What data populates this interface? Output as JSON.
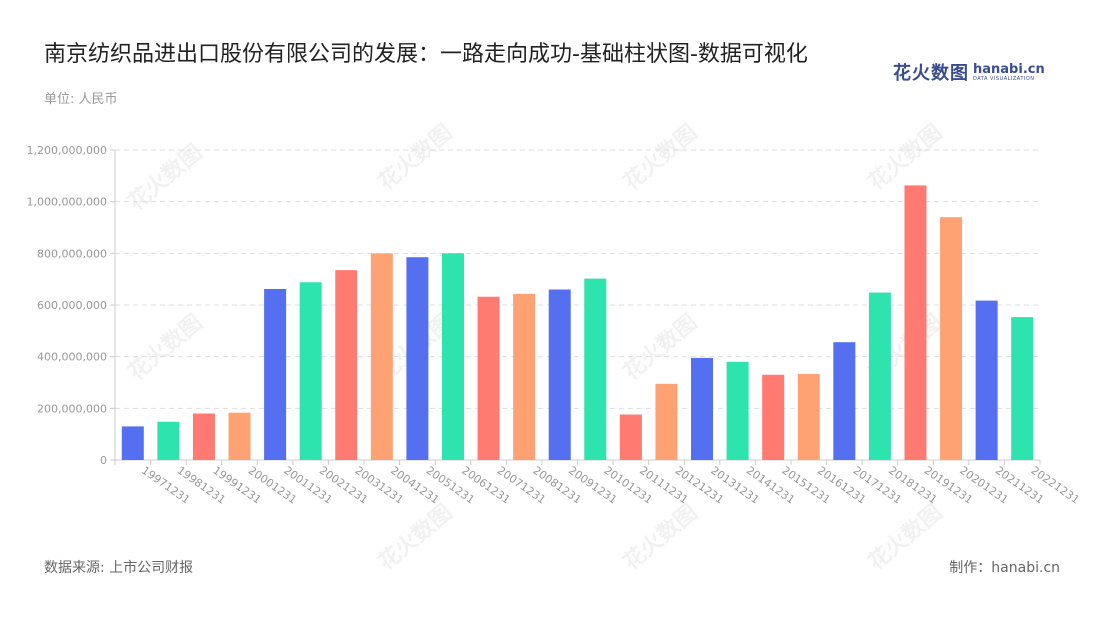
{
  "header": {
    "title": "南京纺织品进出口股份有限公司的发展：一路走向成功-基础柱状图-数据可视化",
    "unit": "单位: 人民币"
  },
  "brand": {
    "cn": "花火数图",
    "en": "hanabi.cn",
    "sub": "DATA VISUALIZATION",
    "color": "#3b4c8f"
  },
  "footer": {
    "source": "数据来源: 上市公司财报",
    "credit": "制作：hanabi.cn"
  },
  "chart_data": {
    "type": "bar",
    "title": "南京纺织品进出口股份有限公司的发展：一路走向成功-基础柱状图-数据可视化",
    "ylim": [
      0,
      1200000000
    ],
    "yticks": [
      "0",
      "200,000,000",
      "400,000,000",
      "600,000,000",
      "800,000,000",
      "1,000,000,000",
      "1,200,000,000"
    ],
    "grid": true,
    "categories": [
      "19971231",
      "19981231",
      "19991231",
      "20001231",
      "20011231",
      "20021231",
      "20031231",
      "20041231",
      "20051231",
      "20061231",
      "20071231",
      "20081231",
      "20091231",
      "20101231",
      "20111231",
      "20121231",
      "20131231",
      "20141231",
      "20151231",
      "20161231",
      "20171231",
      "20181231",
      "20191231",
      "20201231",
      "20211231",
      "20221231"
    ],
    "values": [
      130000000,
      148000000,
      180000000,
      183000000,
      662000000,
      688000000,
      735000000,
      800000000,
      785000000,
      800000000,
      632000000,
      643000000,
      660000000,
      702000000,
      176000000,
      295000000,
      395000000,
      380000000,
      330000000,
      333000000,
      456000000,
      648000000,
      1063000000,
      940000000,
      617000000,
      553000000
    ],
    "palette": [
      "#5470f0",
      "#2de3ae",
      "#ff7b72",
      "#ffa273"
    ]
  }
}
